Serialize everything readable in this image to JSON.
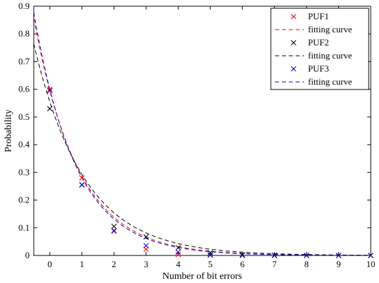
{
  "chart_data": {
    "type": "scatter",
    "xlabel": "Number of bit errors",
    "ylabel": "Probability",
    "xlim": [
      -0.5,
      10
    ],
    "ylim": [
      0,
      0.9
    ],
    "xticks": [
      0,
      1,
      2,
      3,
      4,
      5,
      6,
      7,
      8,
      9,
      10
    ],
    "yticks": [
      0,
      0.1,
      0.2,
      0.3,
      0.4,
      0.5,
      0.6,
      0.7,
      0.8,
      0.9
    ],
    "legend_position": "top-right",
    "legend_entries": [
      "PUF1",
      "fitting curve",
      "PUF2",
      "fitting curve",
      "PUF3",
      "fitting curve"
    ],
    "series": [
      {
        "name": "PUF1",
        "color": "#ff0000",
        "marker": "x",
        "x": [
          0,
          1,
          2,
          3,
          4,
          5,
          6,
          7,
          8,
          9,
          10
        ],
        "y": [
          0.6,
          0.28,
          0.09,
          0.022,
          0.003,
          0.001,
          0,
          0,
          0,
          0,
          0
        ],
        "fit": {
          "a": 0.595,
          "b": 0.73,
          "color": "#ff0000"
        }
      },
      {
        "name": "PUF2",
        "color": "#000000",
        "marker": "x",
        "x": [
          0,
          1,
          2,
          3,
          4,
          5,
          6,
          7,
          8,
          9,
          10
        ],
        "y": [
          0.53,
          0.255,
          0.105,
          0.067,
          0.028,
          0.01,
          0.002,
          0.001,
          0,
          0,
          0
        ],
        "fit": {
          "a": 0.555,
          "b": 0.64,
          "color": "#000000"
        }
      },
      {
        "name": "PUF3",
        "color": "#0000cc",
        "marker": "x",
        "x": [
          0,
          1,
          2,
          3,
          4,
          5,
          6,
          7,
          8,
          9,
          10
        ],
        "y": [
          0.595,
          0.255,
          0.088,
          0.035,
          0.012,
          0.002,
          0.001,
          0,
          0,
          0,
          0
        ],
        "fit": {
          "a": 0.6,
          "b": 0.76,
          "color": "#0000cc"
        }
      }
    ]
  }
}
